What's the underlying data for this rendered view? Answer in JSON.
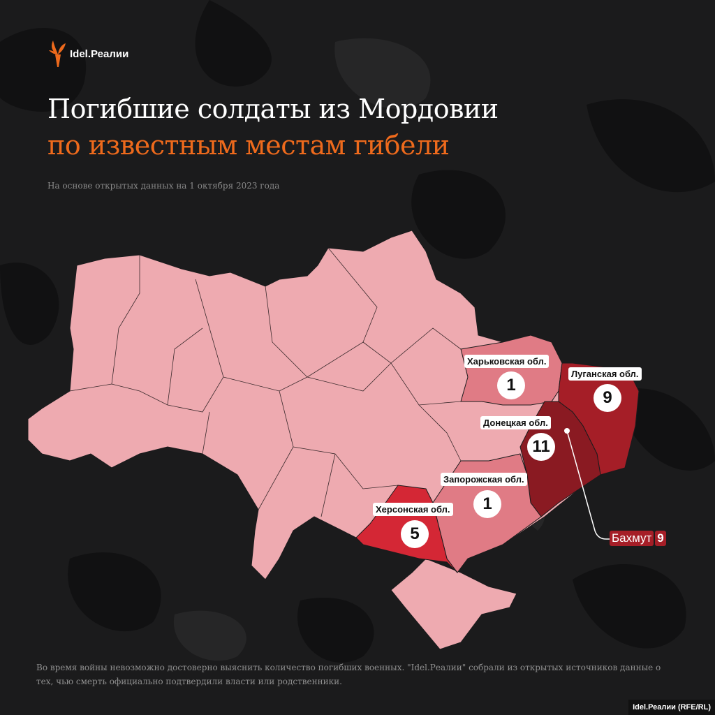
{
  "brand": {
    "logo_text": "Idel.Реалии",
    "accent": "#ee6a1c"
  },
  "title": {
    "line1": "Погибшие солдаты из Мордовии",
    "line2": "по известным местам гибели"
  },
  "subtitle": "На основе открытых данных на 1 октября 2023 года",
  "map": {
    "regions": [
      {
        "name": "Харьковская обл.",
        "count": "1",
        "color": "#e07b85"
      },
      {
        "name": "Луганская обл.",
        "count": "9",
        "color": "#a51e27"
      },
      {
        "name": "Донецкая обл.",
        "count": "11",
        "color": "#8a1a22"
      },
      {
        "name": "Запорожская обл.",
        "count": "1",
        "color": "#e07b85"
      },
      {
        "name": "Херсонская обл.",
        "count": "5",
        "color": "#d42735"
      }
    ],
    "base_color": "#eeaab0",
    "callout": {
      "name": "Бахмут",
      "count": "9"
    }
  },
  "footnote": "Во время войны невозможно достоверно выяснить количество погибших военных. \"Idel.Реалии\" собрали из открытых источников данные о тех, чью смерть официально подтвердили власти или родственники.",
  "credit": "Idel.Реалии (RFE/RL)"
}
